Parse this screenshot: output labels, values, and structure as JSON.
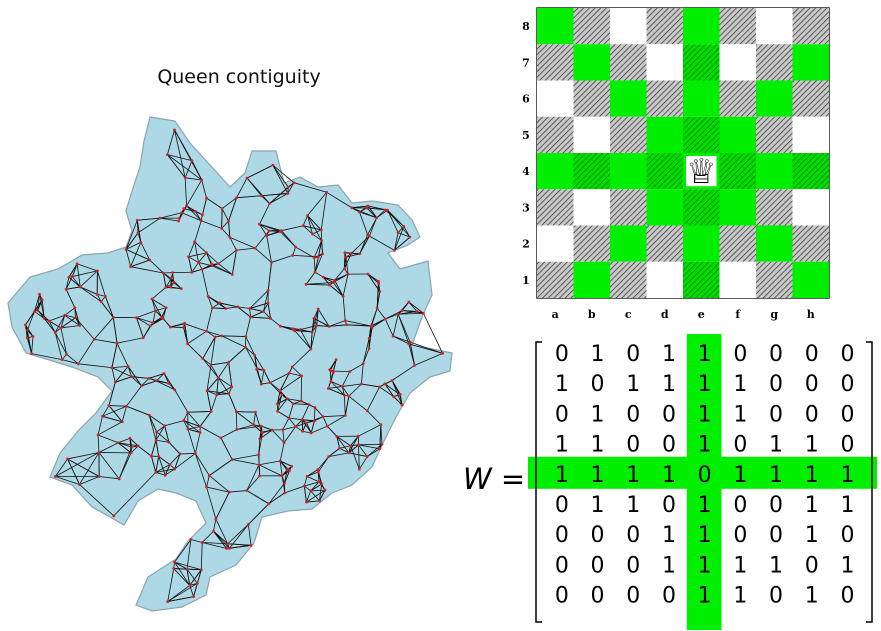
{
  "map": {
    "title": "Queen contiguity",
    "polygon_fill": "#add8e6",
    "polygon_stroke": "#8aa4ae",
    "edge_color": "#111111",
    "node_color": "#d62020"
  },
  "board": {
    "ranks": [
      "8",
      "7",
      "6",
      "5",
      "4",
      "3",
      "2",
      "1"
    ],
    "files": [
      "a",
      "b",
      "c",
      "d",
      "e",
      "f",
      "g",
      "h"
    ],
    "queen_square": "e4",
    "queen_glyph": "♕",
    "highlight_color": "#00ee00"
  },
  "matrix": {
    "label": "W",
    "equals": "=",
    "rows": [
      [
        "0",
        "1",
        "0",
        "1",
        "1",
        "0",
        "0",
        "0",
        "0"
      ],
      [
        "1",
        "0",
        "1",
        "1",
        "1",
        "1",
        "0",
        "0",
        "0"
      ],
      [
        "0",
        "1",
        "0",
        "0",
        "1",
        "1",
        "0",
        "0",
        "0"
      ],
      [
        "1",
        "1",
        "0",
        "0",
        "1",
        "0",
        "1",
        "1",
        "0"
      ],
      [
        "1",
        "1",
        "1",
        "1",
        "0",
        "1",
        "1",
        "1",
        "1"
      ],
      [
        "0",
        "1",
        "1",
        "0",
        "1",
        "0",
        "0",
        "1",
        "1"
      ],
      [
        "0",
        "0",
        "0",
        "1",
        "1",
        "0",
        "0",
        "1",
        "0"
      ],
      [
        "0",
        "0",
        "0",
        "1",
        "1",
        "1",
        "1",
        "0",
        "1"
      ],
      [
        "0",
        "0",
        "0",
        "0",
        "1",
        "1",
        "0",
        "1",
        "0"
      ]
    ],
    "highlight_row_index": 4,
    "highlight_col_index": 4,
    "highlight_color": "#00ee00"
  }
}
